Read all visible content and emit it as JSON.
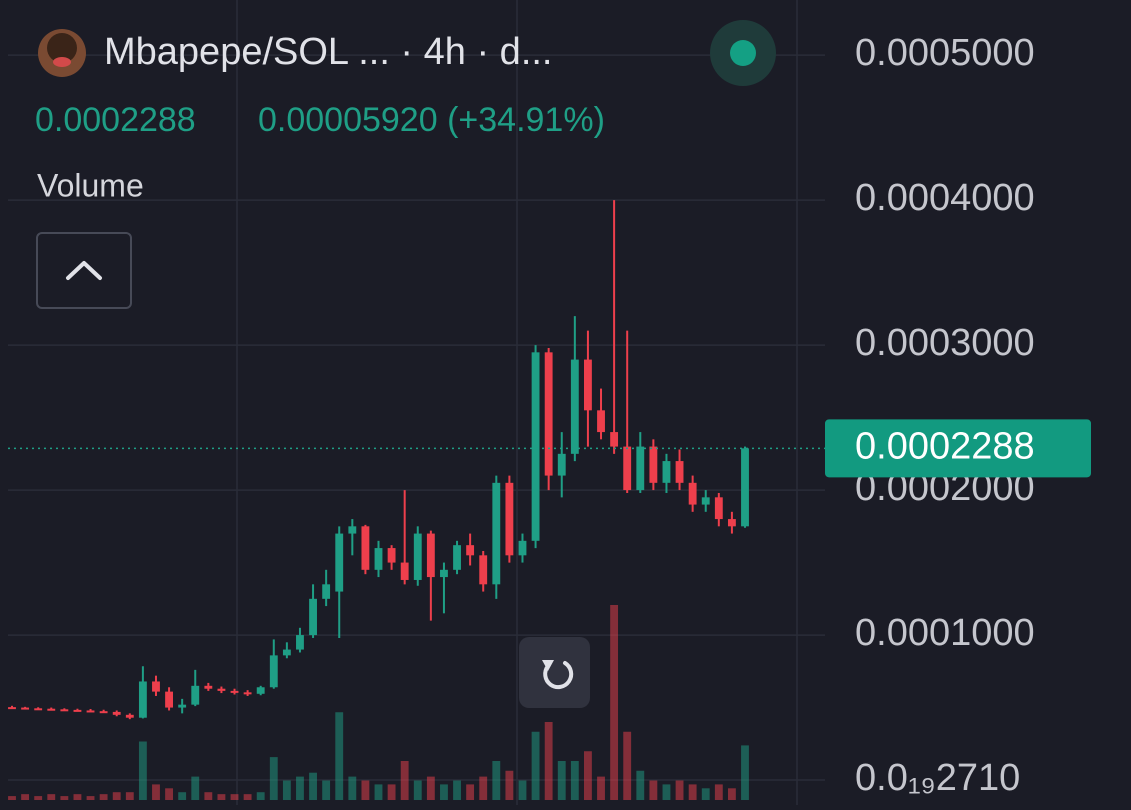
{
  "chart_data": {
    "type": "candlestick",
    "title": "Mbapepe/SOL ... · 4h · d...",
    "price": "0.0002288",
    "change": "0.00005920 (+34.91%)",
    "volume_label": "Volume",
    "last_price": {
      "value": 0.0002288,
      "label": "0.0002288"
    },
    "up_color": "#1f9f86",
    "down_color": "#ee3f4c",
    "grid": true,
    "ylim": [
      -1.72e-05,
      0.000538
    ],
    "yticks": [
      {
        "value": 2.71e-20,
        "label": "0.0₁₉2710"
      },
      {
        "value": 0.0001,
        "label": "0.0001000"
      },
      {
        "value": 0.0002,
        "label": "0.0002000"
      },
      {
        "value": 0.0003,
        "label": "0.0003000"
      },
      {
        "value": 0.0004,
        "label": "0.0004000"
      },
      {
        "value": 0.0005,
        "label": "0.0005000"
      }
    ],
    "open": [
      5.03e-05,
      5e-05,
      4.95e-05,
      4.92e-05,
      4.88e-05,
      4.84e-05,
      4.8e-05,
      4.75e-05,
      4.7e-05,
      4.5e-05,
      4.3e-05,
      6.8e-05,
      6.1e-05,
      5e-05,
      5.2e-05,
      6.5e-05,
      6.3e-05,
      6.15e-05,
      6.05e-05,
      5.95e-05,
      6.4e-05,
      8.6e-05,
      9e-05,
      0.0001,
      0.000125,
      0.00013,
      0.00017,
      0.000175,
      0.000145,
      0.00016,
      0.00015,
      0.000138,
      0.00017,
      0.00014,
      0.000145,
      0.000162,
      0.000155,
      0.000135,
      0.000205,
      0.000155,
      0.000165,
      0.000295,
      0.00021,
      0.000225,
      0.00029,
      0.000255,
      0.00024,
      0.00023,
      0.0002,
      0.00023,
      0.000205,
      0.00022,
      0.000205,
      0.00019,
      0.000195,
      0.00018,
      0.000175
    ],
    "high": [
      5.12e-05,
      5.05e-05,
      5.02e-05,
      5e-05,
      4.95e-05,
      4.92e-05,
      4.9e-05,
      4.85e-05,
      4.8e-05,
      4.6e-05,
      7.85e-05,
      7.2e-05,
      6.4e-05,
      5.6e-05,
      7.6e-05,
      6.7e-05,
      6.45e-05,
      6.3e-05,
      6.2e-05,
      6.5e-05,
      9.7e-05,
      9.5e-05,
      0.000105,
      0.000135,
      0.000145,
      0.000175,
      0.00018,
      0.000176,
      0.000165,
      0.000162,
      0.0002,
      0.000175,
      0.000172,
      0.00015,
      0.000165,
      0.00017,
      0.000158,
      0.00021,
      0.00021,
      0.00017,
      0.0003,
      0.000298,
      0.00024,
      0.00032,
      0.00031,
      0.00027,
      0.0004,
      0.00031,
      0.00024,
      0.000235,
      0.000225,
      0.000228,
      0.00021,
      0.0002,
      0.000198,
      0.000185,
      0.00023
    ],
    "low": [
      4.96e-05,
      4.9e-05,
      4.88e-05,
      4.85e-05,
      4.8e-05,
      4.76e-05,
      4.7e-05,
      4.65e-05,
      4.4e-05,
      4.2e-05,
      4.25e-05,
      5.8e-05,
      4.8e-05,
      4.6e-05,
      5.1e-05,
      6.15e-05,
      6e-05,
      5.9e-05,
      5.8e-05,
      5.85e-05,
      6.3e-05,
      8.4e-05,
      8.8e-05,
      9.8e-05,
      0.00012,
      9.8e-05,
      0.000155,
      0.000142,
      0.00014,
      0.000145,
      0.000135,
      0.000134,
      0.00011,
      0.000115,
      0.000142,
      0.000148,
      0.00013,
      0.000125,
      0.00015,
      0.00015,
      0.00016,
      0.0002,
      0.000195,
      0.00022,
      0.00023,
      0.000235,
      0.000225,
      0.000198,
      0.000198,
      0.0002,
      0.000198,
      0.0002,
      0.000185,
      0.000185,
      0.000175,
      0.00017,
      0.000174
    ],
    "close": [
      5e-05,
      4.95e-05,
      4.92e-05,
      4.88e-05,
      4.84e-05,
      4.8e-05,
      4.75e-05,
      4.7e-05,
      4.5e-05,
      4.3e-05,
      6.8e-05,
      6.1e-05,
      5e-05,
      5.2e-05,
      6.5e-05,
      6.3e-05,
      6.15e-05,
      6.05e-05,
      5.95e-05,
      6.4e-05,
      8.6e-05,
      9e-05,
      0.0001,
      0.000125,
      0.000135,
      0.00017,
      0.000175,
      0.000145,
      0.00016,
      0.00015,
      0.000138,
      0.00017,
      0.00014,
      0.000145,
      0.000162,
      0.000155,
      0.000135,
      0.000205,
      0.000155,
      0.000165,
      0.000295,
      0.00021,
      0.000225,
      0.00029,
      0.000255,
      0.00024,
      0.00023,
      0.0002,
      0.00023,
      0.000205,
      0.00022,
      0.000205,
      0.00019,
      0.000195,
      0.00018,
      0.000175,
      0.0002288
    ],
    "volume": [
      2,
      3,
      2,
      3,
      2,
      3,
      2,
      3,
      4,
      4,
      30,
      8,
      6,
      4,
      12,
      4,
      3,
      3,
      3,
      4,
      22,
      10,
      12,
      14,
      10,
      45,
      12,
      10,
      8,
      8,
      20,
      10,
      12,
      8,
      10,
      8,
      12,
      20,
      15,
      10,
      35,
      40,
      20,
      20,
      25,
      12,
      100,
      35,
      15,
      10,
      8,
      10,
      8,
      6,
      8,
      6,
      28
    ]
  }
}
